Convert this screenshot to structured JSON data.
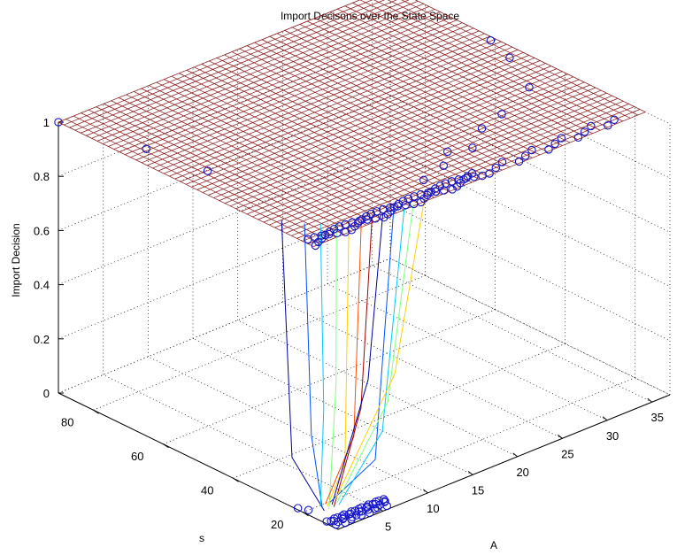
{
  "chart_data": {
    "type": "surface",
    "title": "Import Decisons over the State Space",
    "xlabel": "A",
    "ylabel": "s",
    "zlabel": "Import Decision",
    "xlim": [
      0,
      37
    ],
    "ylim": [
      10,
      90
    ],
    "zlim": [
      0,
      1
    ],
    "x_ticks": [
      "5",
      "10",
      "15",
      "20",
      "25",
      "30",
      "35"
    ],
    "y_ticks": [
      "20",
      "40",
      "60",
      "80"
    ],
    "z_ticks": [
      "0",
      "0.2",
      "0.4",
      "0.6",
      "0.8",
      "1"
    ],
    "grid": true,
    "series": [
      {
        "kind": "surface",
        "z": 1,
        "a_range": [
          0,
          37
        ],
        "s_range": [
          17,
          90
        ],
        "color": "#8b1a1a"
      },
      {
        "kind": "scatter",
        "marker": "circle",
        "color": "#1515c8"
      },
      {
        "kind": "lines",
        "colors": [
          "#0000a0",
          "#0050ff",
          "#00c8ff",
          "#7fff7f",
          "#ffd000",
          "#ff5000",
          "#a00000"
        ]
      }
    ]
  }
}
